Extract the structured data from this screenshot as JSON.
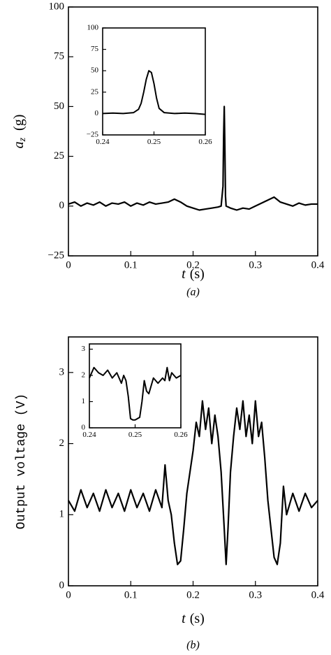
{
  "chart_data": [
    {
      "type": "line",
      "color": "#000000",
      "xlabel": {
        "symbol": "t",
        "unit": "(s)"
      },
      "ylabel": {
        "symbol": "a",
        "subscript": "z",
        "unit": "(g)"
      },
      "caption": "(a)",
      "xlim": [
        0,
        0.4
      ],
      "xticks": [
        0,
        0.1,
        0.2,
        0.3,
        0.4
      ],
      "ylim": [
        -25,
        100
      ],
      "yticks": [
        {
          "value": -25,
          "label": "−25"
        },
        0,
        25,
        50,
        75,
        100
      ],
      "x": [
        0,
        0.01,
        0.02,
        0.03,
        0.04,
        0.05,
        0.06,
        0.07,
        0.08,
        0.09,
        0.1,
        0.11,
        0.12,
        0.13,
        0.14,
        0.15,
        0.16,
        0.17,
        0.18,
        0.19,
        0.2,
        0.21,
        0.22,
        0.23,
        0.24,
        0.245,
        0.248,
        0.249,
        0.25,
        0.251,
        0.252,
        0.253,
        0.26,
        0.27,
        0.28,
        0.29,
        0.3,
        0.31,
        0.32,
        0.33,
        0.34,
        0.35,
        0.36,
        0.37,
        0.38,
        0.39,
        0.4
      ],
      "values": [
        1,
        2,
        0,
        1.5,
        0.5,
        2,
        0,
        1.5,
        1,
        2,
        0,
        1.5,
        0.5,
        2,
        1,
        1.5,
        2,
        3.5,
        2,
        0,
        -1,
        -2,
        -1.5,
        -1,
        -0.5,
        0,
        10,
        35,
        50,
        30,
        5,
        0,
        -1,
        -2,
        -1,
        -1.5,
        0,
        1.5,
        3,
        4.5,
        2,
        1,
        0,
        1.5,
        0.5,
        1,
        1
      ],
      "inset": {
        "type": "line",
        "color": "#000000",
        "xlim": [
          0.24,
          0.26
        ],
        "xticks": [
          0.24,
          0.25,
          0.26
        ],
        "ylim": [
          -25,
          100
        ],
        "yticks": [
          {
            "value": -25,
            "label": "−25"
          },
          0,
          25,
          50,
          75,
          100
        ],
        "x": [
          0.24,
          0.242,
          0.244,
          0.246,
          0.247,
          0.2475,
          0.248,
          0.2485,
          0.249,
          0.2495,
          0.25,
          0.2505,
          0.251,
          0.252,
          0.254,
          0.256,
          0.258,
          0.26
        ],
        "values": [
          0,
          0.5,
          0,
          1,
          5,
          12,
          25,
          40,
          50,
          48,
          35,
          18,
          6,
          1,
          0,
          0.5,
          0,
          -1
        ]
      }
    },
    {
      "type": "line",
      "color": "#000000",
      "xlabel": {
        "symbol": "t",
        "unit": "(s)"
      },
      "ylabel": "Output voltage (V)",
      "caption": "(b)",
      "xlim": [
        0,
        0.4
      ],
      "xticks": [
        0,
        0.1,
        0.2,
        0.3,
        0.4
      ],
      "ylim": [
        0,
        3.5
      ],
      "yticks": [
        0,
        1,
        2,
        3
      ],
      "x": [
        0,
        0.01,
        0.02,
        0.03,
        0.04,
        0.05,
        0.06,
        0.07,
        0.08,
        0.09,
        0.1,
        0.11,
        0.12,
        0.13,
        0.14,
        0.15,
        0.155,
        0.16,
        0.165,
        0.17,
        0.175,
        0.18,
        0.185,
        0.19,
        0.2,
        0.205,
        0.21,
        0.215,
        0.22,
        0.225,
        0.23,
        0.235,
        0.24,
        0.245,
        0.25,
        0.253,
        0.256,
        0.26,
        0.265,
        0.27,
        0.275,
        0.28,
        0.285,
        0.29,
        0.295,
        0.3,
        0.305,
        0.31,
        0.315,
        0.32,
        0.325,
        0.33,
        0.335,
        0.34,
        0.345,
        0.35,
        0.36,
        0.37,
        0.38,
        0.39,
        0.4
      ],
      "values": [
        1.2,
        1.05,
        1.35,
        1.1,
        1.3,
        1.05,
        1.35,
        1.1,
        1.3,
        1.05,
        1.35,
        1.1,
        1.3,
        1.05,
        1.35,
        1.1,
        1.7,
        1.2,
        1.0,
        0.6,
        0.3,
        0.35,
        0.8,
        1.3,
        1.9,
        2.3,
        2.1,
        2.6,
        2.2,
        2.5,
        2.0,
        2.4,
        2.1,
        1.6,
        0.8,
        0.3,
        0.8,
        1.6,
        2.1,
        2.5,
        2.2,
        2.6,
        2.1,
        2.4,
        2.0,
        2.6,
        2.1,
        2.3,
        1.8,
        1.2,
        0.8,
        0.4,
        0.3,
        0.6,
        1.4,
        1.0,
        1.3,
        1.05,
        1.3,
        1.1,
        1.2
      ],
      "inset": {
        "type": "line",
        "color": "#000000",
        "xlim": [
          0.24,
          0.26
        ],
        "xticks": [
          0.24,
          0.25,
          0.26
        ],
        "ylim": [
          0,
          3.2
        ],
        "yticks": [
          0,
          1,
          2,
          3
        ],
        "x": [
          0.24,
          0.241,
          0.242,
          0.243,
          0.244,
          0.245,
          0.246,
          0.247,
          0.2475,
          0.248,
          0.2485,
          0.249,
          0.2495,
          0.25,
          0.2505,
          0.251,
          0.2515,
          0.252,
          0.2525,
          0.253,
          0.254,
          0.255,
          0.256,
          0.2565,
          0.257,
          0.2575,
          0.258,
          0.259,
          0.26
        ],
        "values": [
          1.9,
          2.3,
          2.1,
          2.0,
          2.2,
          1.9,
          2.1,
          1.7,
          2.0,
          1.8,
          1.2,
          0.35,
          0.3,
          0.3,
          0.35,
          0.4,
          1.0,
          1.8,
          1.4,
          1.3,
          1.9,
          1.7,
          1.9,
          1.8,
          2.3,
          1.8,
          2.1,
          1.9,
          2.0
        ]
      }
    }
  ]
}
